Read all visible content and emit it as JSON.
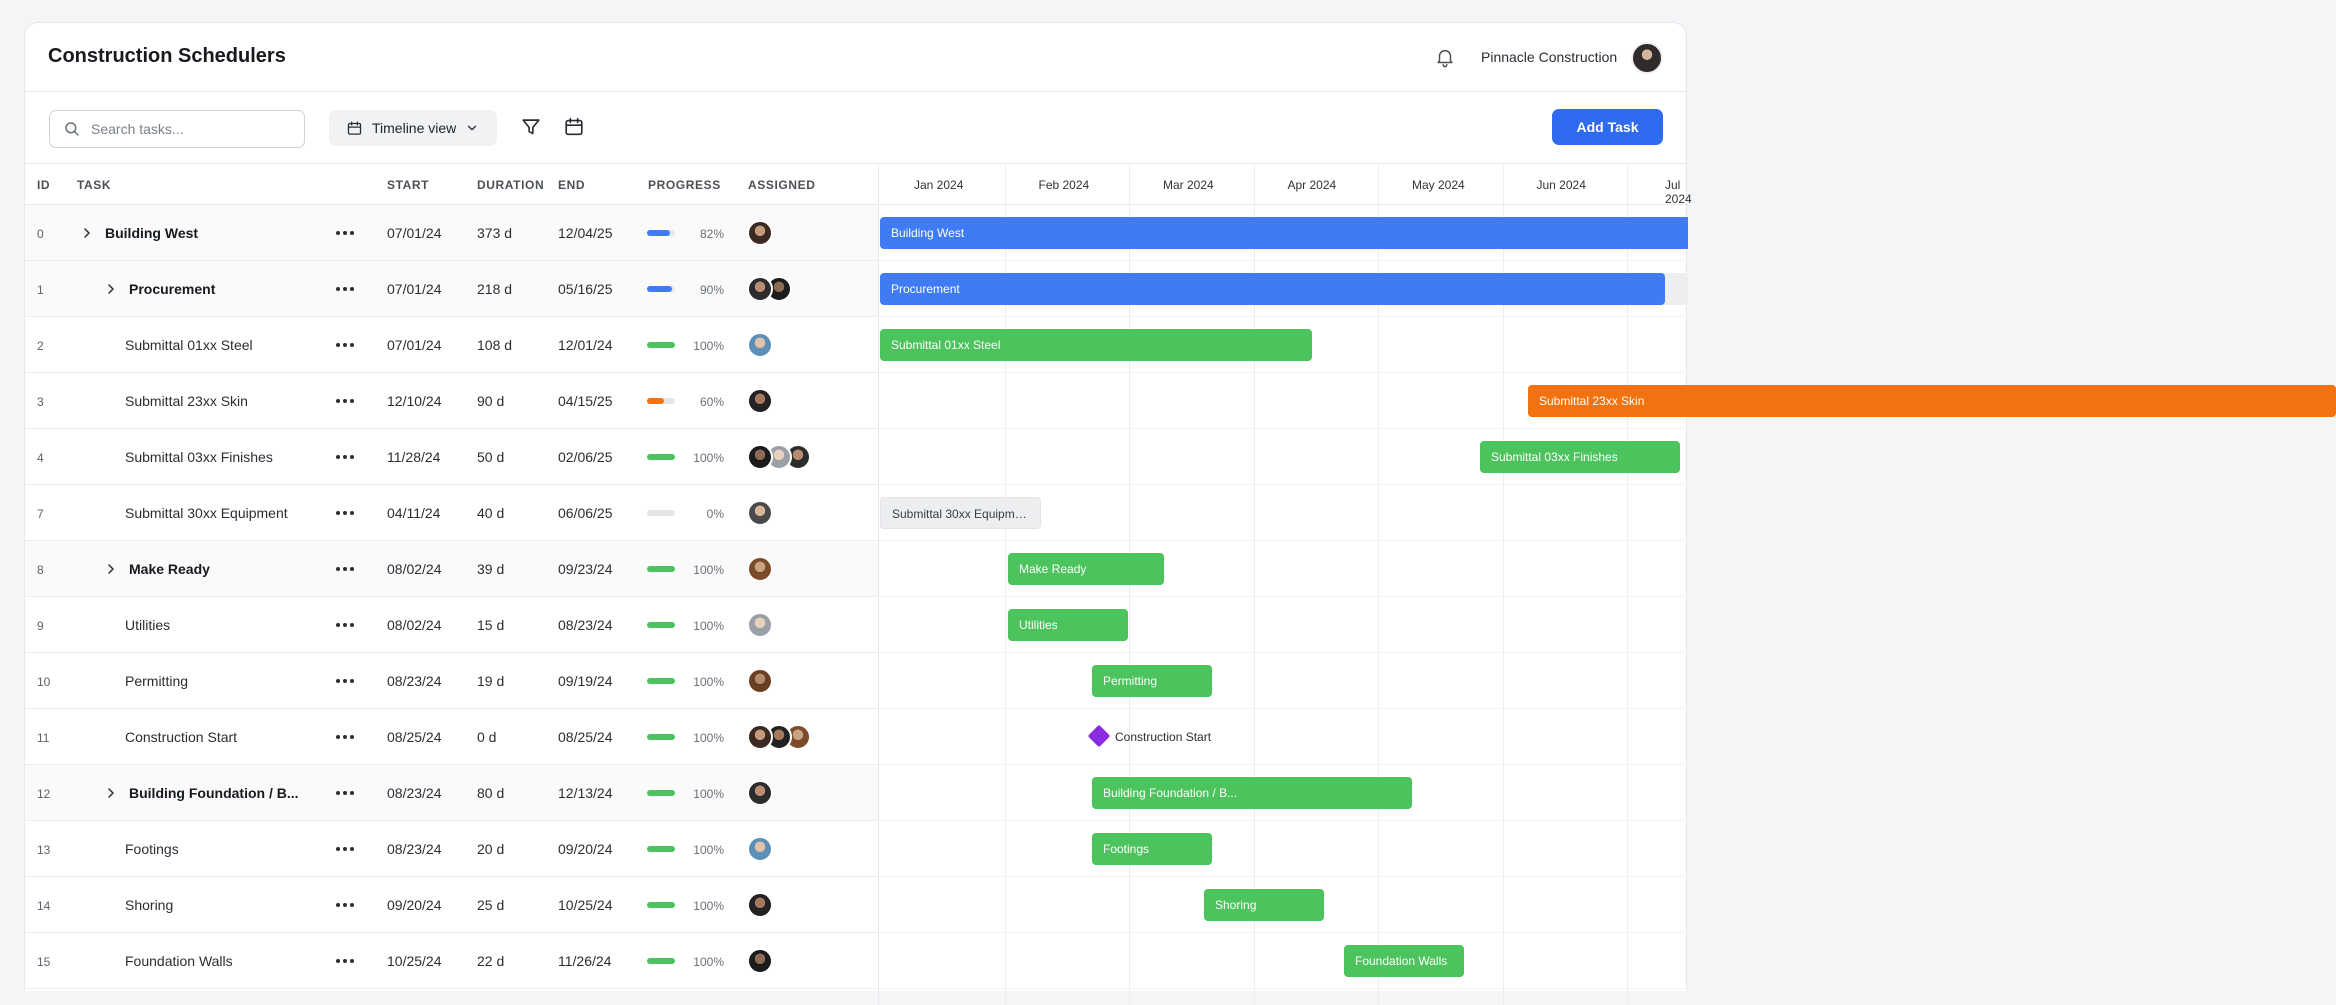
{
  "app": {
    "title": "Construction Schedulers",
    "company": "Pinnacle Construction"
  },
  "toolbar": {
    "search_placeholder": "Search tasks...",
    "view_label": "Timeline view",
    "add_label": "Add Task"
  },
  "columns": {
    "id": "ID",
    "task": "TASK",
    "start": "START",
    "duration": "DURATION",
    "end": "END",
    "progress": "PROGRESS",
    "assigned": "ASSIGNED"
  },
  "months": [
    "Jan 2024",
    "Feb 2024",
    "Mar 2024",
    "Apr 2024",
    "May 2024",
    "Jun 2024",
    "Jul 2024"
  ],
  "colors": {
    "blue": "#3f7cf3",
    "green": "#4cc35d",
    "orange": "#f2720f",
    "gray": "#eceef0",
    "milestone": "#8b2be2",
    "accent": "#2f6bef"
  },
  "rows": [
    {
      "id": "0",
      "task": "Building West",
      "start": "07/01/24",
      "duration": "373 d",
      "end": "12/04/25",
      "progress": 82,
      "pct": "82%",
      "assigned": 1,
      "parent": true,
      "level": 0,
      "bar_label": "Building West",
      "bar_color": "blue"
    },
    {
      "id": "1",
      "task": "Procurement",
      "start": "07/01/24",
      "duration": "218 d",
      "end": "05/16/25",
      "progress": 90,
      "pct": "90%",
      "assigned": 2,
      "parent": true,
      "level": 1,
      "bar_label": "Procurement",
      "bar_color": "blue"
    },
    {
      "id": "2",
      "task": "Submittal 01xx Steel",
      "start": "07/01/24",
      "duration": "108 d",
      "end": "12/01/24",
      "progress": 100,
      "pct": "100%",
      "assigned": 1,
      "parent": false,
      "level": 2,
      "bar_label": "Submittal 01xx Steel",
      "bar_color": "green"
    },
    {
      "id": "3",
      "task": "Submittal 23xx Skin",
      "start": "12/10/24",
      "duration": "90 d",
      "end": "04/15/25",
      "progress": 60,
      "pct": "60%",
      "assigned": 1,
      "parent": false,
      "level": 2,
      "bar_label": "Submittal 23xx Skin",
      "bar_color": "orange"
    },
    {
      "id": "4",
      "task": "Submittal 03xx Finishes",
      "start": "11/28/24",
      "duration": "50 d",
      "end": "02/06/25",
      "progress": 100,
      "pct": "100%",
      "assigned": 3,
      "parent": false,
      "level": 2,
      "bar_label": "Submittal 03xx Finishes",
      "bar_color": "green"
    },
    {
      "id": "7",
      "task": "Submittal 30xx Equipment",
      "start": "04/11/24",
      "duration": "40 d",
      "end": "06/06/25",
      "progress": 0,
      "pct": "0%",
      "assigned": 1,
      "parent": false,
      "level": 2,
      "bar_label": "Submittal 30xx Equipm…",
      "bar_color": "gray"
    },
    {
      "id": "8",
      "task": "Make Ready",
      "start": "08/02/24",
      "duration": "39 d",
      "end": "09/23/24",
      "progress": 100,
      "pct": "100%",
      "assigned": 1,
      "parent": true,
      "level": 1,
      "bar_label": "Make Ready",
      "bar_color": "green"
    },
    {
      "id": "9",
      "task": "Utilities",
      "start": "08/02/24",
      "duration": "15 d",
      "end": "08/23/24",
      "progress": 100,
      "pct": "100%",
      "assigned": 1,
      "parent": false,
      "level": 2,
      "bar_label": "Utilities",
      "bar_color": "green"
    },
    {
      "id": "10",
      "task": "Permitting",
      "start": "08/23/24",
      "duration": "19 d",
      "end": "09/19/24",
      "progress": 100,
      "pct": "100%",
      "assigned": 1,
      "parent": false,
      "level": 2,
      "bar_label": "Permitting",
      "bar_color": "green"
    },
    {
      "id": "11",
      "task": "Construction Start",
      "start": "08/25/24",
      "duration": "0 d",
      "end": "08/25/24",
      "progress": 100,
      "pct": "100%",
      "assigned": 3,
      "parent": false,
      "level": 2,
      "bar_label": "Construction Start",
      "bar_color": "milestone"
    },
    {
      "id": "12",
      "task": "Building Foundation / B...",
      "start": "08/23/24",
      "duration": "80 d",
      "end": "12/13/24",
      "progress": 100,
      "pct": "100%",
      "assigned": 1,
      "parent": true,
      "level": 1,
      "bar_label": "Building Foundation / B...",
      "bar_color": "green"
    },
    {
      "id": "13",
      "task": "Footings",
      "start": "08/23/24",
      "duration": "20 d",
      "end": "09/20/24",
      "progress": 100,
      "pct": "100%",
      "assigned": 1,
      "parent": false,
      "level": 2,
      "bar_label": "Footings",
      "bar_color": "green"
    },
    {
      "id": "14",
      "task": "Shoring",
      "start": "09/20/24",
      "duration": "25 d",
      "end": "10/25/24",
      "progress": 100,
      "pct": "100%",
      "assigned": 1,
      "parent": false,
      "level": 2,
      "bar_label": "Shoring",
      "bar_color": "green"
    },
    {
      "id": "15",
      "task": "Foundation Walls",
      "start": "10/25/24",
      "duration": "22 d",
      "end": "11/26/24",
      "progress": 100,
      "pct": "100%",
      "assigned": 1,
      "parent": false,
      "level": 2,
      "bar_label": "Foundation Walls",
      "bar_color": "green"
    }
  ]
}
